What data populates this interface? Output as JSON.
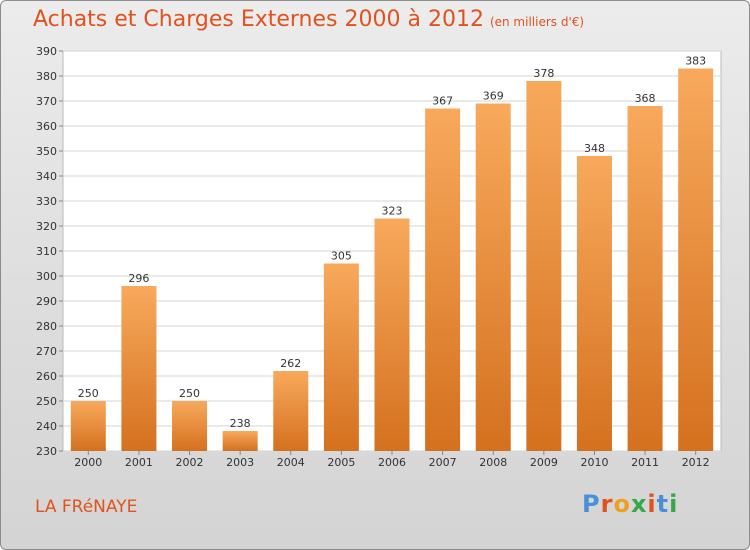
{
  "title": "Achats et Charges Externes 2000 à 2012",
  "subtitle": "(en milliers d'€)",
  "place": "LA FRéNAYE",
  "logo": {
    "letters": [
      "P",
      "r",
      "o",
      "x",
      "i",
      "t",
      "i"
    ],
    "colors": [
      "#4a90d9",
      "#e0531e",
      "#f0a020",
      "#3aa64a",
      "#e0531e",
      "#4a90d9",
      "#3aa64a"
    ]
  },
  "colors": {
    "accent": "#e0531e",
    "bar_top": "#f8a95c",
    "bar_bottom": "#d4711f"
  },
  "chart_data": {
    "type": "bar",
    "categories": [
      "2000",
      "2001",
      "2002",
      "2003",
      "2004",
      "2005",
      "2006",
      "2007",
      "2008",
      "2009",
      "2010",
      "2011",
      "2012"
    ],
    "values": [
      250,
      296,
      250,
      238,
      262,
      305,
      323,
      367,
      369,
      378,
      348,
      368,
      383
    ],
    "title": "Achats et Charges Externes 2000 à 2012",
    "ylim": [
      230,
      390
    ],
    "yticks": [
      230,
      240,
      250,
      260,
      270,
      280,
      290,
      300,
      310,
      320,
      330,
      340,
      350,
      360,
      370,
      380,
      390
    ],
    "grid": true,
    "data_labels": true
  }
}
